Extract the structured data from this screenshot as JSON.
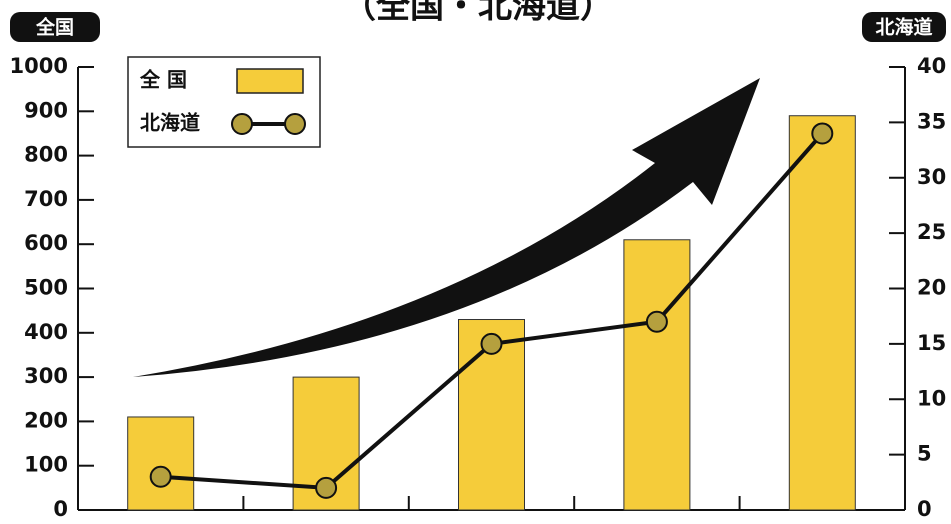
{
  "chart_data": {
    "type": "bar_line",
    "title": "（全国・北海道）",
    "y_label": "全国",
    "y2_label": "北海道",
    "categories": [
      null,
      null,
      null,
      null,
      null
    ],
    "series": [
      {
        "name": "全 国",
        "type": "bar",
        "color": "#f5cc3a",
        "values": [
          210,
          300,
          430,
          610,
          890
        ]
      },
      {
        "name": "北海道",
        "type": "line",
        "axis": "y2",
        "color": "#111111",
        "marker_color": "#b5a03e",
        "values": [
          3,
          2,
          15,
          17,
          34
        ]
      }
    ],
    "ylim": [
      0,
      1000
    ],
    "yticks": [
      0,
      100,
      200,
      300,
      400,
      500,
      600,
      700,
      800,
      900,
      1000
    ],
    "y2lim": [
      0,
      40
    ],
    "y2ticks": [
      0,
      5,
      10,
      15,
      20,
      25,
      30,
      35,
      40
    ],
    "grid": false,
    "legend": "upper left"
  }
}
